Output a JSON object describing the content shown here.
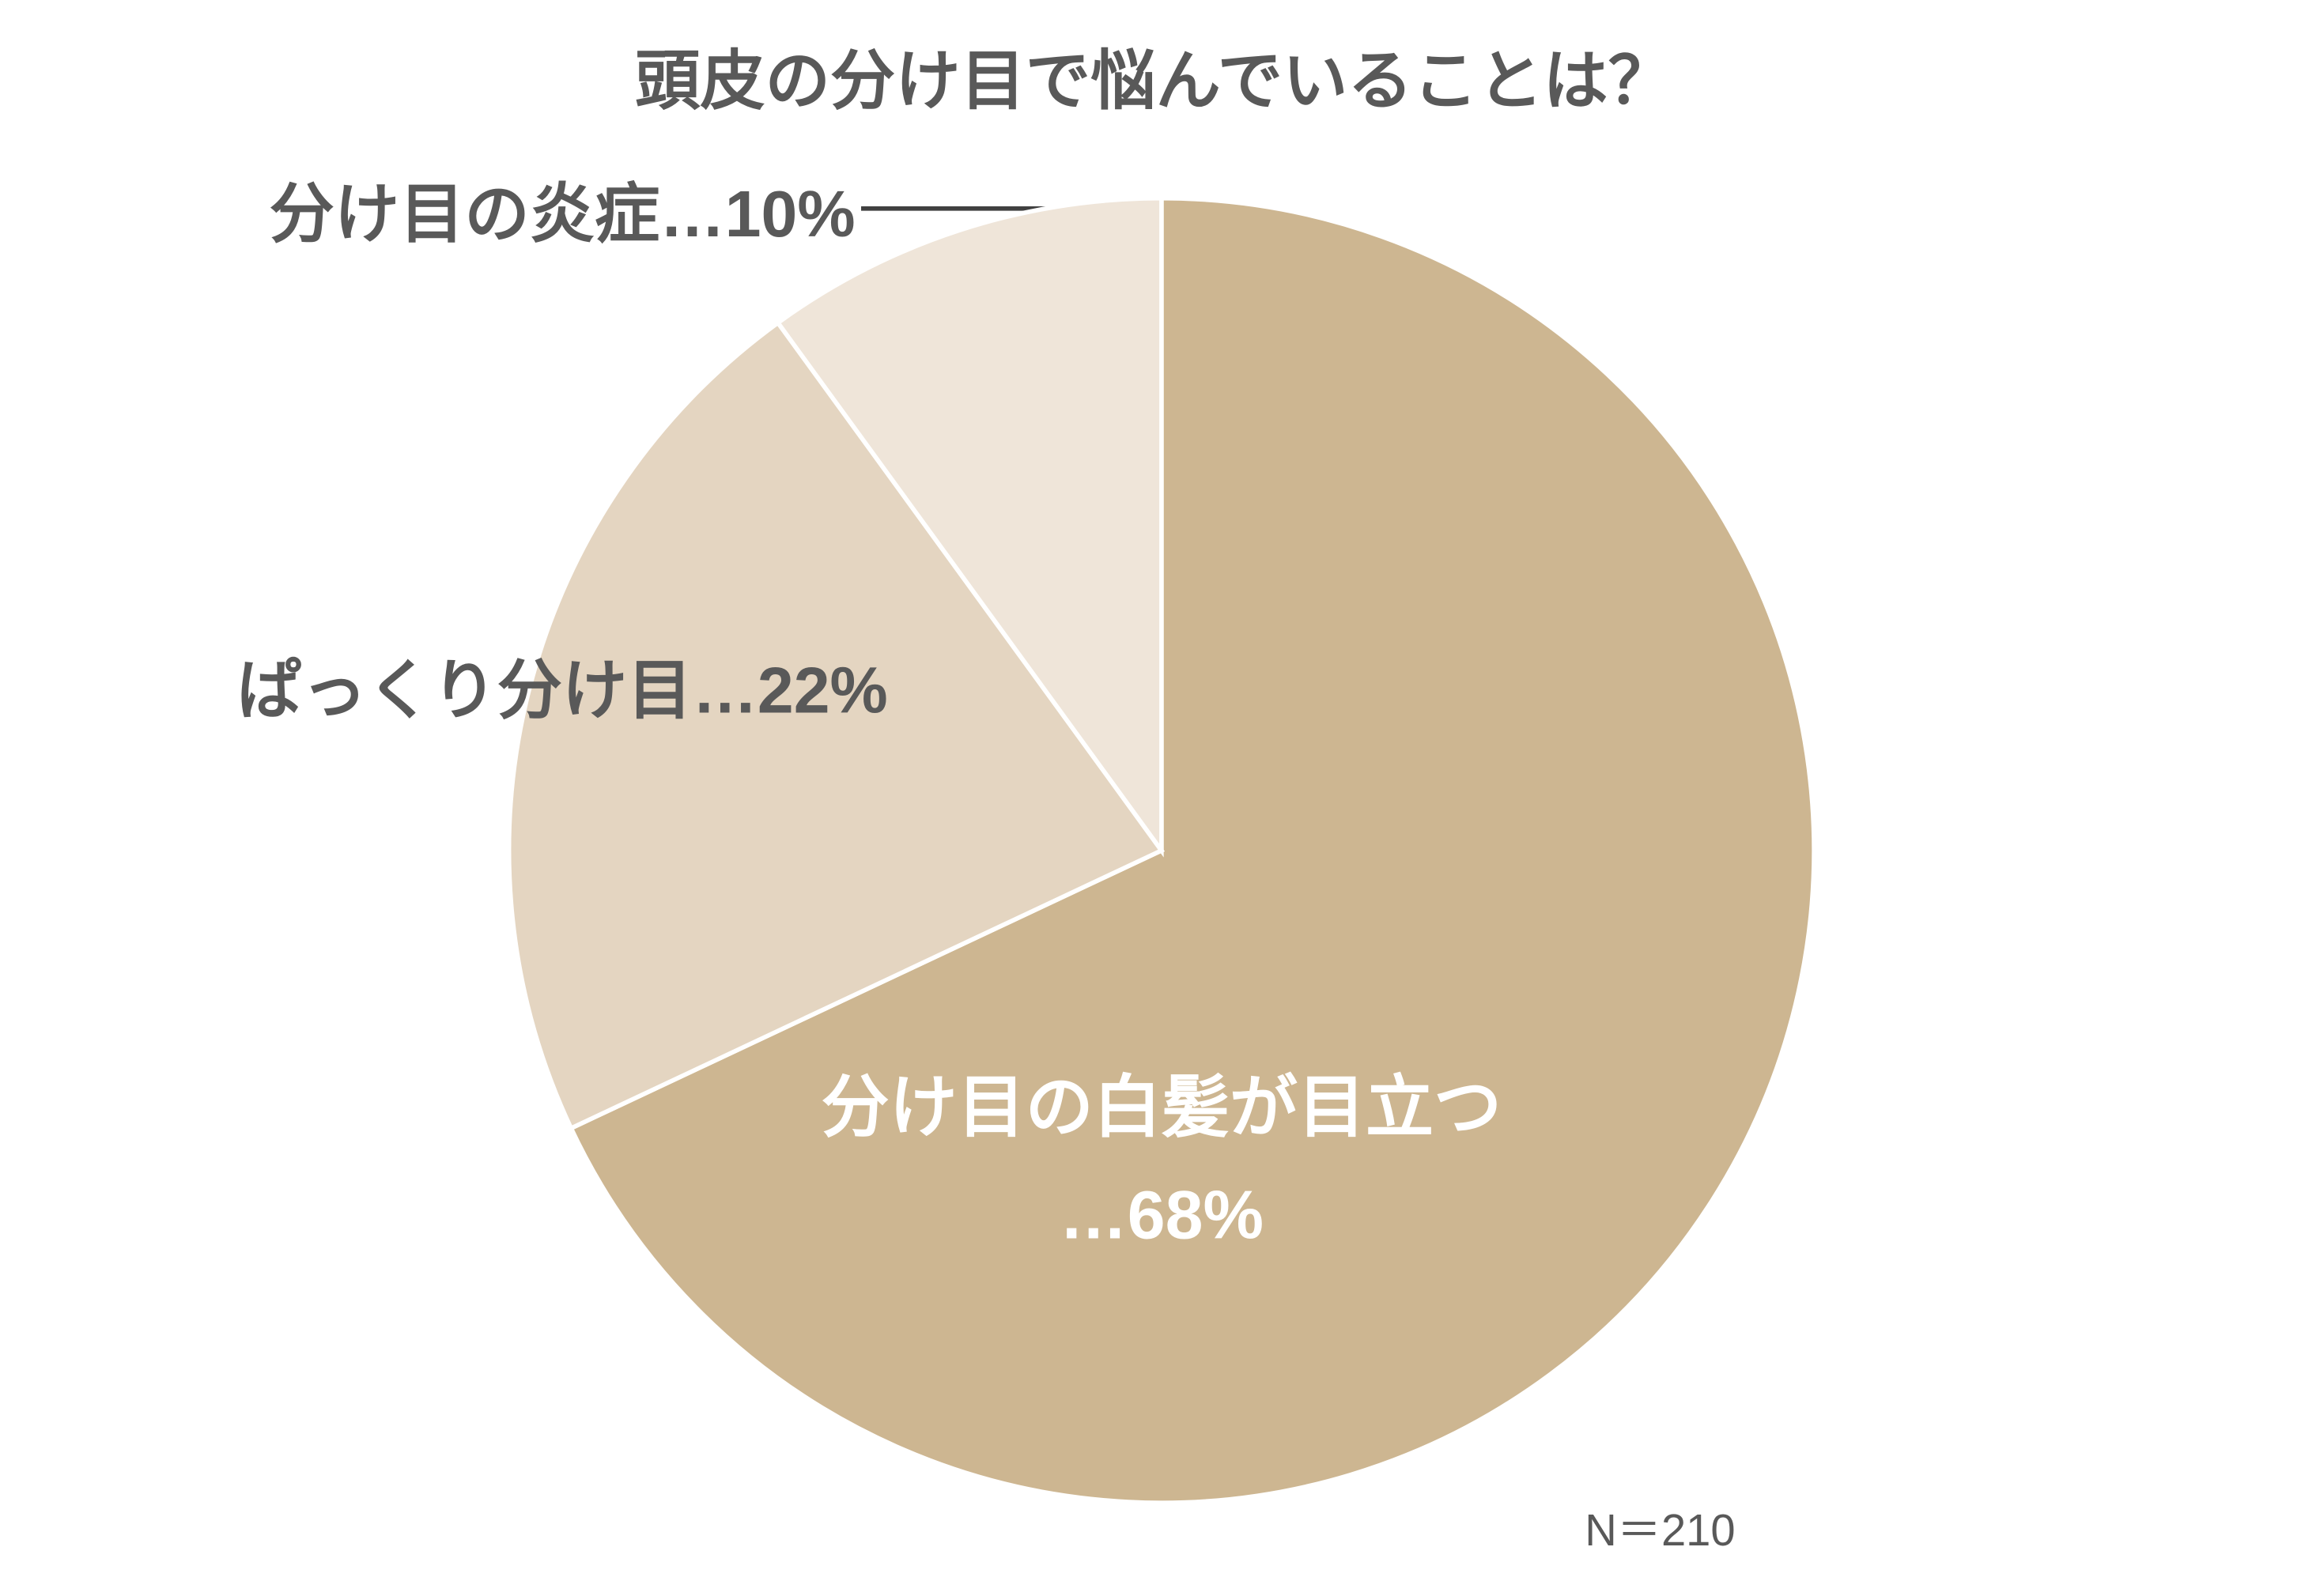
{
  "chart_data": {
    "type": "pie",
    "title": "頭皮の分け目で悩んでいることは？",
    "categories": [
      "分け目の白髪が目立つ",
      "ぱっくり分け目",
      "分け目の炎症"
    ],
    "values": [
      68,
      22,
      10
    ],
    "value_labels": [
      "…68%",
      "…22%",
      "…10%"
    ],
    "colors": [
      "#cdb691",
      "#e4d5c1",
      "#efe5d9"
    ],
    "annotation": "N＝210"
  }
}
